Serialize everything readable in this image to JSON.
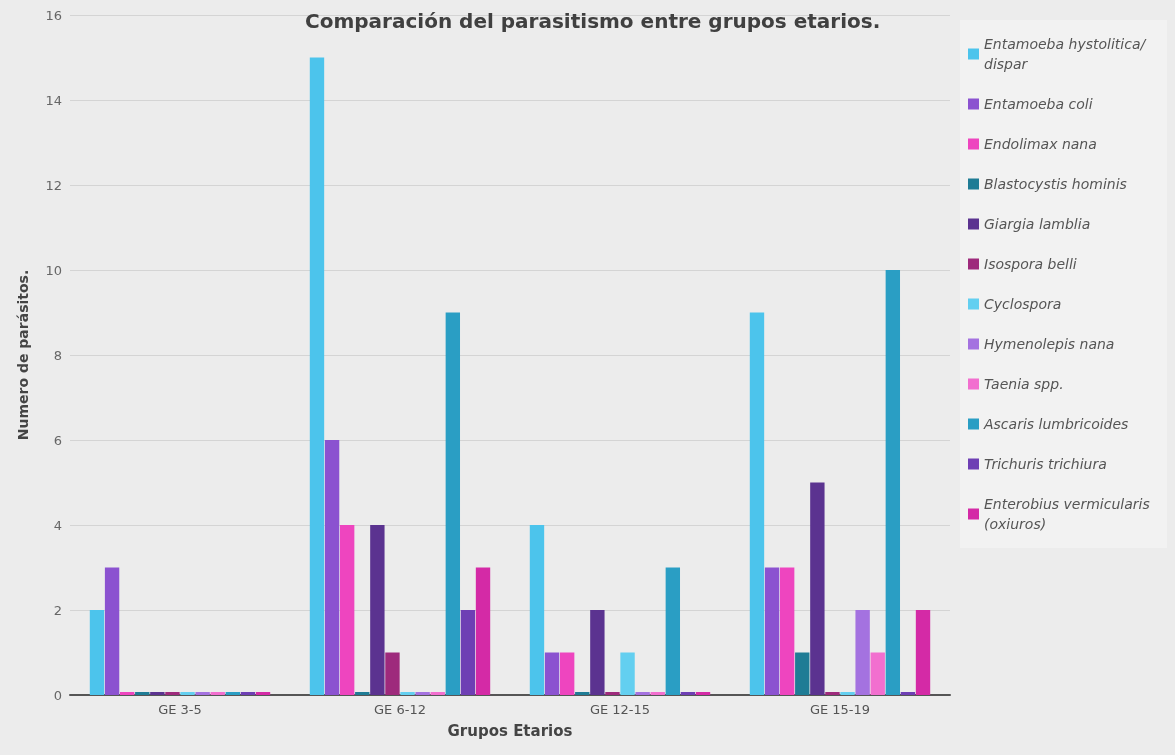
{
  "chart_data": {
    "type": "bar",
    "title": "Comparación del parasitismo entre grupos etarios.",
    "xlabel": "Grupos Etarios",
    "ylabel": "Numero de parásitos.",
    "categories": [
      "GE 3-5",
      "GE 6-12",
      "GE 12-15",
      "GE 15-19"
    ],
    "ylim": [
      0,
      16
    ],
    "yticks": [
      0,
      2,
      4,
      6,
      8,
      10,
      12,
      14,
      16
    ],
    "grid": "y",
    "legend": "right",
    "series": [
      {
        "name": "Entamoeba hystolitica/dispar",
        "color": "#4cc4ec",
        "values": [
          2,
          15,
          4,
          9
        ]
      },
      {
        "name": "Entamoeba coli",
        "color": "#8b52d0",
        "values": [
          3,
          6,
          1,
          3
        ]
      },
      {
        "name": "Endolimax nana",
        "color": "#ee45bf",
        "values": [
          0,
          4,
          1,
          3
        ]
      },
      {
        "name": "Blastocystis hominis",
        "color": "#1f7c95",
        "values": [
          0,
          0,
          0,
          1
        ]
      },
      {
        "name": "Giargia lamblia",
        "color": "#5b3390",
        "values": [
          0,
          4,
          2,
          5
        ]
      },
      {
        "name": "Isospora belli",
        "color": "#9e2a7c",
        "values": [
          0,
          1,
          0,
          0
        ]
      },
      {
        "name": "Cyclospora",
        "color": "#63cff0",
        "values": [
          0,
          0,
          1,
          0
        ]
      },
      {
        "name": "Hymenolepis nana",
        "color": "#a472e0",
        "values": [
          0,
          0,
          0,
          2
        ]
      },
      {
        "name": "Taenia spp.",
        "color": "#f26fcf",
        "values": [
          0,
          0,
          0,
          1
        ]
      },
      {
        "name": "Ascaris lumbricoides",
        "color": "#2a9ec4",
        "values": [
          0,
          9,
          3,
          10
        ]
      },
      {
        "name": "Trichuris trichiura",
        "color": "#6e3fb4",
        "values": [
          0,
          2,
          0,
          0
        ]
      },
      {
        "name": "Enterobius vermicularis (oxiuros)",
        "color": "#d42aa6",
        "values": [
          0,
          3,
          0,
          2
        ]
      }
    ]
  }
}
